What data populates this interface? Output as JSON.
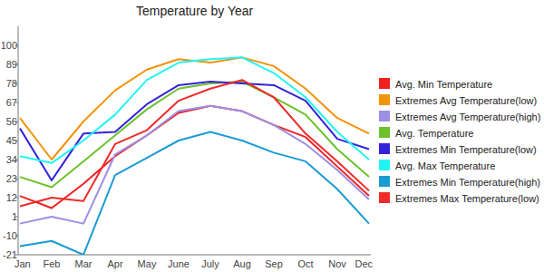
{
  "chart_data": {
    "type": "line",
    "title": "Temperature by Year",
    "categories": [
      "Jan",
      "Feb",
      "Mar",
      "Apr",
      "May",
      "June",
      "July",
      "Aug",
      "Sep",
      "Oct",
      "Nov",
      "Dec"
    ],
    "ylim": [
      -21,
      111
    ],
    "yticks": [
      -21,
      -10,
      1,
      12,
      23,
      34,
      45,
      56,
      67,
      78,
      89,
      100
    ],
    "grid": false,
    "legend": "right",
    "series": [
      {
        "name": "Avg. Min Temperature",
        "color": "#ee2020",
        "values": [
          13,
          6,
          20,
          36,
          48,
          61,
          65,
          62,
          54,
          47,
          30,
          13
        ]
      },
      {
        "name": "Extremes Avg Temperature(low)",
        "color": "#f2930a",
        "values": [
          58,
          34,
          56,
          74,
          86,
          92,
          90,
          93,
          88,
          75,
          58,
          49
        ]
      },
      {
        "name": "Extremes Avg Temperature(high)",
        "color": "#9d8ee6",
        "values": [
          -3,
          1,
          -3,
          37,
          48,
          62,
          65,
          62,
          54,
          43,
          28,
          11
        ]
      },
      {
        "name": "Avg. Temperature",
        "color": "#6cc22a",
        "values": [
          24,
          18,
          33,
          48,
          63,
          75,
          78,
          79,
          70,
          60,
          40,
          24
        ]
      },
      {
        "name": "Extremes Min Temperature(low)",
        "color": "#3323d9",
        "values": [
          52,
          22,
          49,
          50,
          66,
          77,
          79,
          78,
          77,
          68,
          46,
          40
        ]
      },
      {
        "name": "Avg. Max Temperature",
        "color": "#22f4f4",
        "values": [
          36,
          32,
          45,
          60,
          80,
          90,
          92,
          93,
          84,
          70,
          50,
          34
        ]
      },
      {
        "name": "Extremes Min Temperature(high)",
        "color": "#1a9bd3",
        "values": [
          -16,
          -13,
          -21,
          25,
          35,
          45,
          50,
          45,
          38,
          33,
          17,
          -3
        ]
      },
      {
        "name": "Extremes Max Temperature(low)",
        "color": "#f02a2a",
        "values": [
          7,
          12,
          10,
          43,
          51,
          68,
          75,
          80,
          70,
          49,
          33,
          16
        ]
      }
    ]
  }
}
